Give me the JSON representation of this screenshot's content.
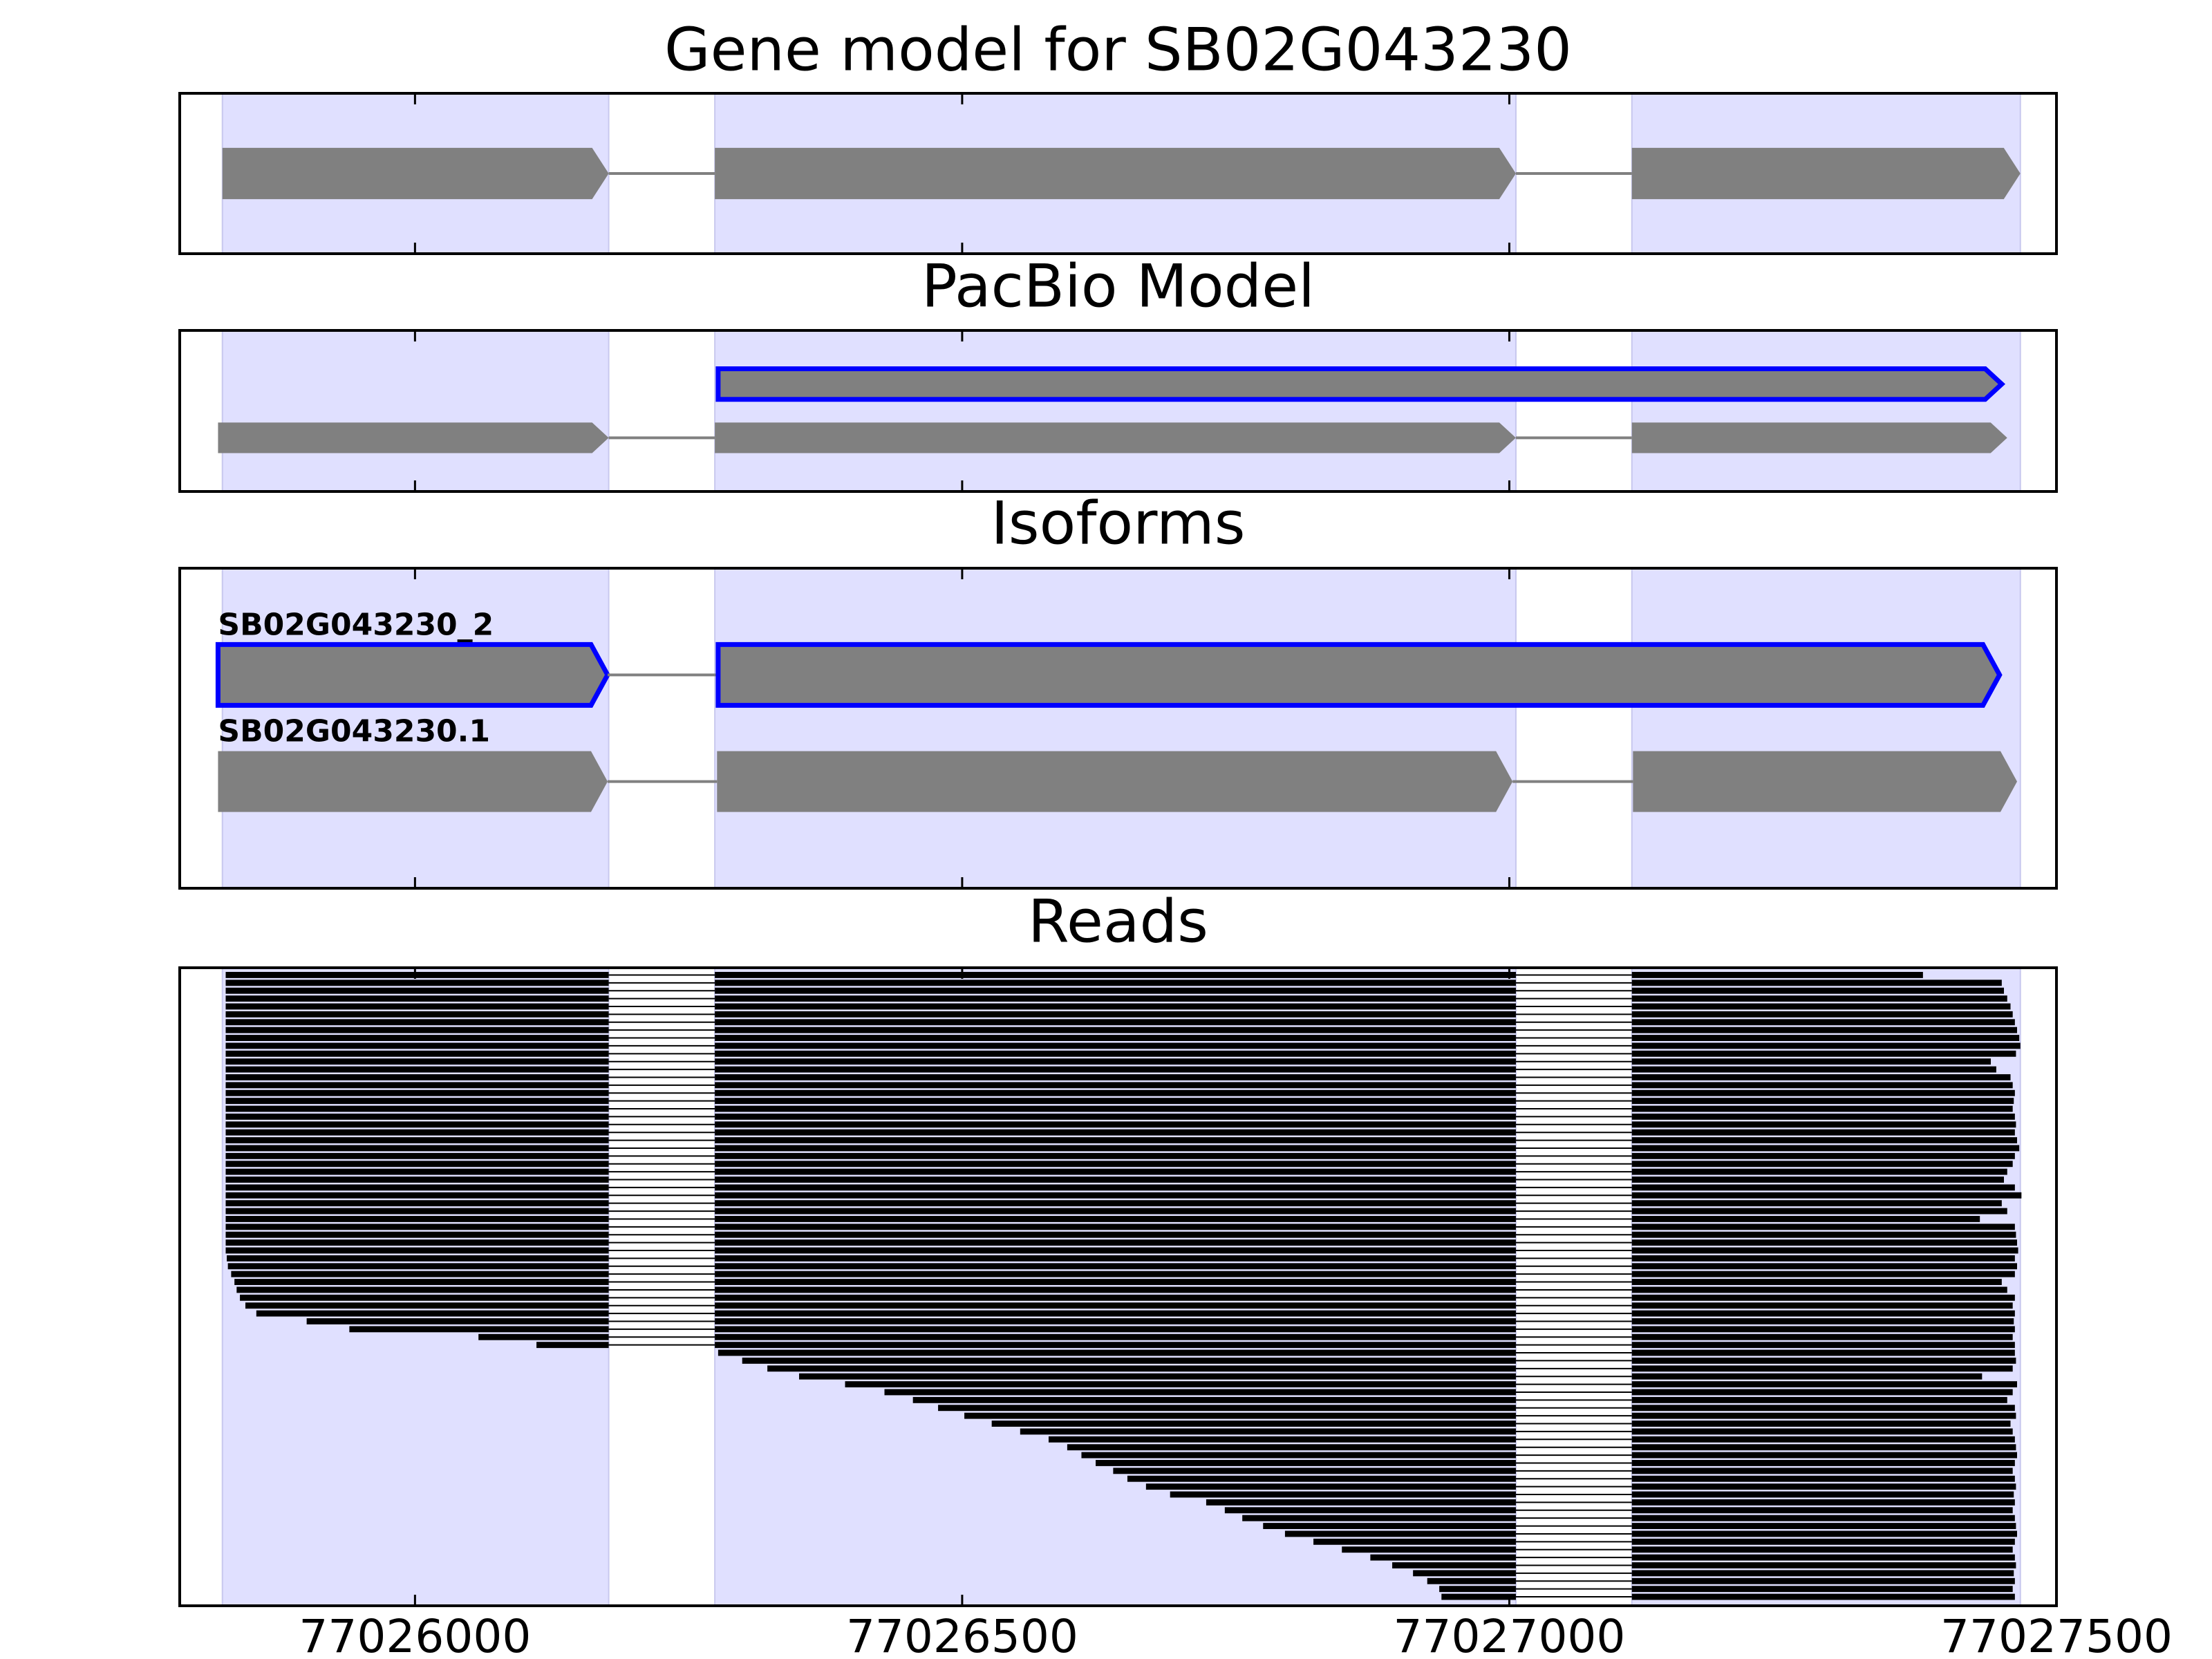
{
  "chart_data": [
    {
      "type": "gene_model",
      "title": "Gene model for SB02G043230",
      "color": "#808080",
      "shade_color": "#e0e0ff",
      "exons": [
        [
          77025824,
          77026177
        ],
        [
          77026274,
          77027006
        ],
        [
          77027112,
          77027467
        ]
      ]
    },
    {
      "type": "transcripts",
      "title": "PacBio Model",
      "color": "#808080",
      "transcripts": [
        {
          "exons": [
            [
              77026277,
              77027450
            ]
          ],
          "highlight": "#0000ff"
        },
        {
          "exons": [
            [
              77025820,
              77026177
            ],
            [
              77026274,
              77027006
            ],
            [
              77027112,
              77027455
            ]
          ]
        }
      ]
    },
    {
      "type": "transcripts",
      "title": "Isoforms",
      "color": "#808080",
      "transcripts": [
        {
          "name": "SB02G043230_2",
          "exons": [
            [
              77025820,
              77026176
            ],
            [
              77026277,
              77027448
            ]
          ],
          "highlight": "#0000ff"
        },
        {
          "name": "SB02G043230.1",
          "exons": [
            [
              77025820,
              77026176
            ],
            [
              77026276,
              77027003
            ],
            [
              77027113,
              77027464
            ]
          ]
        }
      ]
    },
    {
      "type": "reads",
      "title": "Reads",
      "color": "#000000",
      "xlim": [
        77025785,
        77027500
      ],
      "xticks": [
        77026000,
        77026500,
        77027000,
        77027500
      ],
      "reads": [
        [
          77025827,
          77027378
        ],
        [
          77025827,
          77027450
        ],
        [
          77025827,
          77027452
        ],
        [
          77025827,
          77027455
        ],
        [
          77025827,
          77027458
        ],
        [
          77025827,
          77027460
        ],
        [
          77025827,
          77027462
        ],
        [
          77025827,
          77027464
        ],
        [
          77025827,
          77027466
        ],
        [
          77025827,
          77027467
        ],
        [
          77025827,
          77027463
        ],
        [
          77025827,
          77027440
        ],
        [
          77025827,
          77027445
        ],
        [
          77025827,
          77027458
        ],
        [
          77025827,
          77027460
        ],
        [
          77025827,
          77027462
        ],
        [
          77025827,
          77027461
        ],
        [
          77025827,
          77027460
        ],
        [
          77025827,
          77027462
        ],
        [
          77025827,
          77027463
        ],
        [
          77025827,
          77027462
        ],
        [
          77025827,
          77027464
        ],
        [
          77025827,
          77027466
        ],
        [
          77025827,
          77027462
        ],
        [
          77025827,
          77027460
        ],
        [
          77025827,
          77027455
        ],
        [
          77025827,
          77027452
        ],
        [
          77025827,
          77027462
        ],
        [
          77025827,
          77027468
        ],
        [
          77025827,
          77027450
        ],
        [
          77025827,
          77027455
        ],
        [
          77025827,
          77027430
        ],
        [
          77025827,
          77027462
        ],
        [
          77025827,
          77027463
        ],
        [
          77025827,
          77027464
        ],
        [
          77025827,
          77027465
        ],
        [
          77025828,
          77027462
        ],
        [
          77025829,
          77027464
        ],
        [
          77025832,
          77027462
        ],
        [
          77025835,
          77027450
        ],
        [
          77025837,
          77027455
        ],
        [
          77025840,
          77027462
        ],
        [
          77025845,
          77027460
        ],
        [
          77025855,
          77027462
        ],
        [
          77025901,
          77027461
        ],
        [
          77025940,
          77027462
        ],
        [
          77026058,
          77027460
        ],
        [
          77026111,
          77027462
        ],
        [
          77026277,
          77027462
        ],
        [
          77026299,
          77027463
        ],
        [
          77026322,
          77027460
        ],
        [
          77026351,
          77027432
        ],
        [
          77026393,
          77027464
        ],
        [
          77026429,
          77027460
        ],
        [
          77026455,
          77027455
        ],
        [
          77026478,
          77027462
        ],
        [
          77026502,
          77027463
        ],
        [
          77026527,
          77027458
        ],
        [
          77026553,
          77027460
        ],
        [
          77026579,
          77027462
        ],
        [
          77026596,
          77027463
        ],
        [
          77026609,
          77027464
        ],
        [
          77026622,
          77027462
        ],
        [
          77026638,
          77027460
        ],
        [
          77026651,
          77027462
        ],
        [
          77026668,
          77027463
        ],
        [
          77026690,
          77027461
        ],
        [
          77026723,
          77027462
        ],
        [
          77026740,
          77027460
        ],
        [
          77026756,
          77027462
        ],
        [
          77026775,
          77027463
        ],
        [
          77026795,
          77027464
        ],
        [
          77026821,
          77027462
        ],
        [
          77026847,
          77027460
        ],
        [
          77026873,
          77027462
        ],
        [
          77026893,
          77027463
        ],
        [
          77026912,
          77027461
        ],
        [
          77026925,
          77027462
        ],
        [
          77026936,
          77027460
        ],
        [
          77026938,
          77027462
        ]
      ]
    }
  ]
}
